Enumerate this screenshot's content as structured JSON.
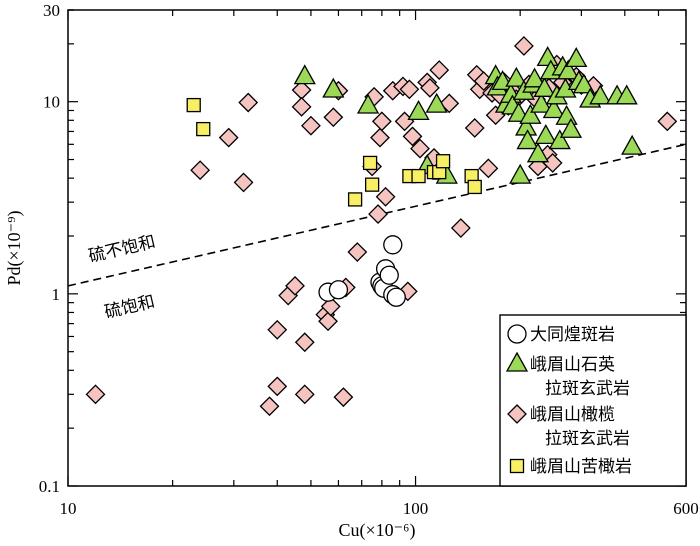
{
  "chart_data": {
    "type": "scatter",
    "xscale": "log",
    "yscale": "log",
    "xlim": [
      10,
      600
    ],
    "ylim": [
      0.1,
      30
    ],
    "xlabel": "Cu(×10⁻⁶)",
    "ylabel": "Pd(×10⁻⁹)",
    "x_ticks": [
      {
        "value": 10,
        "label": "10"
      },
      {
        "value": 100,
        "label": "100"
      },
      {
        "value": 600,
        "label": "600"
      }
    ],
    "y_ticks": [
      {
        "value": 0.1,
        "label": "0.1"
      },
      {
        "value": 1,
        "label": "1"
      },
      {
        "value": 10,
        "label": "10"
      },
      {
        "value": 30,
        "label": "30"
      }
    ],
    "divider_line": {
      "from": [
        10,
        1.1
      ],
      "to": [
        600,
        6.0
      ],
      "style": "dashed"
    },
    "region_labels": {
      "upper": "硫不饱和",
      "lower": "硫饱和"
    },
    "legend_position": "bottom-right",
    "colors": {
      "circle_fill": "#ffffff",
      "triangle_fill": "#9bd957",
      "diamond_fill": "#f5c4c0",
      "square_fill": "#f8ef64",
      "stroke": "#000000"
    },
    "series": [
      {
        "name": "大同煌斑岩",
        "legend_lines": [
          "大同煌斑岩"
        ],
        "marker": "circle",
        "points": [
          [
            56,
            1.02
          ],
          [
            60,
            1.05
          ],
          [
            79,
            1.15
          ],
          [
            80,
            1.1
          ],
          [
            81,
            1.07
          ],
          [
            82,
            1.35
          ],
          [
            84,
            1.25
          ],
          [
            86,
            1.8
          ],
          [
            86,
            0.99
          ],
          [
            88,
            0.96
          ]
        ]
      },
      {
        "name": "峨眉山石英拉斑玄武岩",
        "legend_lines": [
          "峨眉山石英",
          "拉斑玄武岩"
        ],
        "marker": "triangle",
        "points": [
          [
            48,
            13.5
          ],
          [
            58,
            11.5
          ],
          [
            73,
            9.5
          ],
          [
            102,
            8.8
          ],
          [
            108,
            4.6
          ],
          [
            115,
            9.6
          ],
          [
            120,
            4.3
          ],
          [
            123,
            4.1
          ],
          [
            170,
            13.5
          ],
          [
            172,
            11.8
          ],
          [
            178,
            12.6
          ],
          [
            182,
            9.6
          ],
          [
            188,
            10.8
          ],
          [
            190,
            9.4
          ],
          [
            195,
            13.1
          ],
          [
            198,
            8.6
          ],
          [
            200,
            4.1
          ],
          [
            205,
            11.2
          ],
          [
            208,
            7.3
          ],
          [
            210,
            6.2
          ],
          [
            214,
            8.4
          ],
          [
            218,
            12.2
          ],
          [
            220,
            13.0
          ],
          [
            225,
            5.3
          ],
          [
            230,
            9.6
          ],
          [
            235,
            11.6
          ],
          [
            237,
            6.6
          ],
          [
            240,
            16.8
          ],
          [
            245,
            14.3
          ],
          [
            250,
            9.0
          ],
          [
            255,
            10.6
          ],
          [
            260,
            6.2
          ],
          [
            265,
            15.0
          ],
          [
            270,
            11.5
          ],
          [
            272,
            8.3
          ],
          [
            275,
            14.3
          ],
          [
            280,
            7.1
          ],
          [
            290,
            16.6
          ],
          [
            295,
            12.6
          ],
          [
            305,
            12.1
          ],
          [
            318,
            10.2
          ],
          [
            340,
            10.6
          ],
          [
            380,
            10.6
          ],
          [
            405,
            10.6
          ],
          [
            420,
            5.8
          ]
        ]
      },
      {
        "name": "峨眉山橄榄拉斑玄武岩",
        "legend_lines": [
          "峨眉山橄榄",
          "拉斑玄武岩"
        ],
        "marker": "diamond",
        "points": [
          [
            12,
            0.3
          ],
          [
            24,
            4.4
          ],
          [
            29,
            6.5
          ],
          [
            32,
            3.8
          ],
          [
            33,
            9.9
          ],
          [
            38,
            0.26
          ],
          [
            40,
            0.33
          ],
          [
            40,
            0.65
          ],
          [
            43,
            0.98
          ],
          [
            45,
            1.1
          ],
          [
            47,
            11.5
          ],
          [
            47,
            9.4
          ],
          [
            48,
            0.56
          ],
          [
            48,
            0.3
          ],
          [
            50,
            7.5
          ],
          [
            55,
            0.78
          ],
          [
            56,
            0.72
          ],
          [
            57,
            0.86
          ],
          [
            58,
            8.3
          ],
          [
            60,
            11.4
          ],
          [
            62,
            0.29
          ],
          [
            63,
            1.08
          ],
          [
            68,
            1.65
          ],
          [
            75,
            4.6
          ],
          [
            76,
            10.6
          ],
          [
            78,
            2.6
          ],
          [
            79,
            6.5
          ],
          [
            80,
            7.9
          ],
          [
            82,
            3.2
          ],
          [
            86,
            11.4
          ],
          [
            92,
            12.0
          ],
          [
            93,
            7.9
          ],
          [
            95,
            1.03
          ],
          [
            96,
            11.6
          ],
          [
            98,
            6.6
          ],
          [
            103,
            5.7
          ],
          [
            108,
            12.6
          ],
          [
            110,
            11.8
          ],
          [
            113,
            5.1
          ],
          [
            117,
            14.6
          ],
          [
            125,
            9.8
          ],
          [
            135,
            2.2
          ],
          [
            148,
            7.3
          ],
          [
            150,
            13.8
          ],
          [
            153,
            11.6
          ],
          [
            157,
            12.8
          ],
          [
            162,
            4.5
          ],
          [
            166,
            11.1
          ],
          [
            170,
            8.5
          ],
          [
            175,
            10.8
          ],
          [
            180,
            12.6
          ],
          [
            185,
            9.5
          ],
          [
            192,
            11.2
          ],
          [
            195,
            10.3
          ],
          [
            205,
            19.5
          ],
          [
            212,
            12.3
          ],
          [
            222,
            10.3
          ],
          [
            225,
            4.6
          ],
          [
            230,
            11.6
          ],
          [
            240,
            5.3
          ],
          [
            242,
            11.8
          ],
          [
            248,
            4.8
          ],
          [
            255,
            15.6
          ],
          [
            265,
            12.6
          ],
          [
            290,
            13.5
          ],
          [
            300,
            12.2
          ],
          [
            325,
            12.1
          ],
          [
            530,
            7.9
          ]
        ]
      },
      {
        "name": "峨眉山苦橄岩",
        "legend_lines": [
          "峨眉山苦橄岩"
        ],
        "marker": "square",
        "points": [
          [
            23,
            9.6
          ],
          [
            24.5,
            7.2
          ],
          [
            67,
            3.1
          ],
          [
            74,
            4.8
          ],
          [
            75,
            3.7
          ],
          [
            96,
            4.1
          ],
          [
            102,
            4.1
          ],
          [
            113,
            4.3
          ],
          [
            117,
            4.3
          ],
          [
            120,
            4.9
          ],
          [
            145,
            4.1
          ],
          [
            148,
            3.6
          ]
        ]
      }
    ]
  }
}
